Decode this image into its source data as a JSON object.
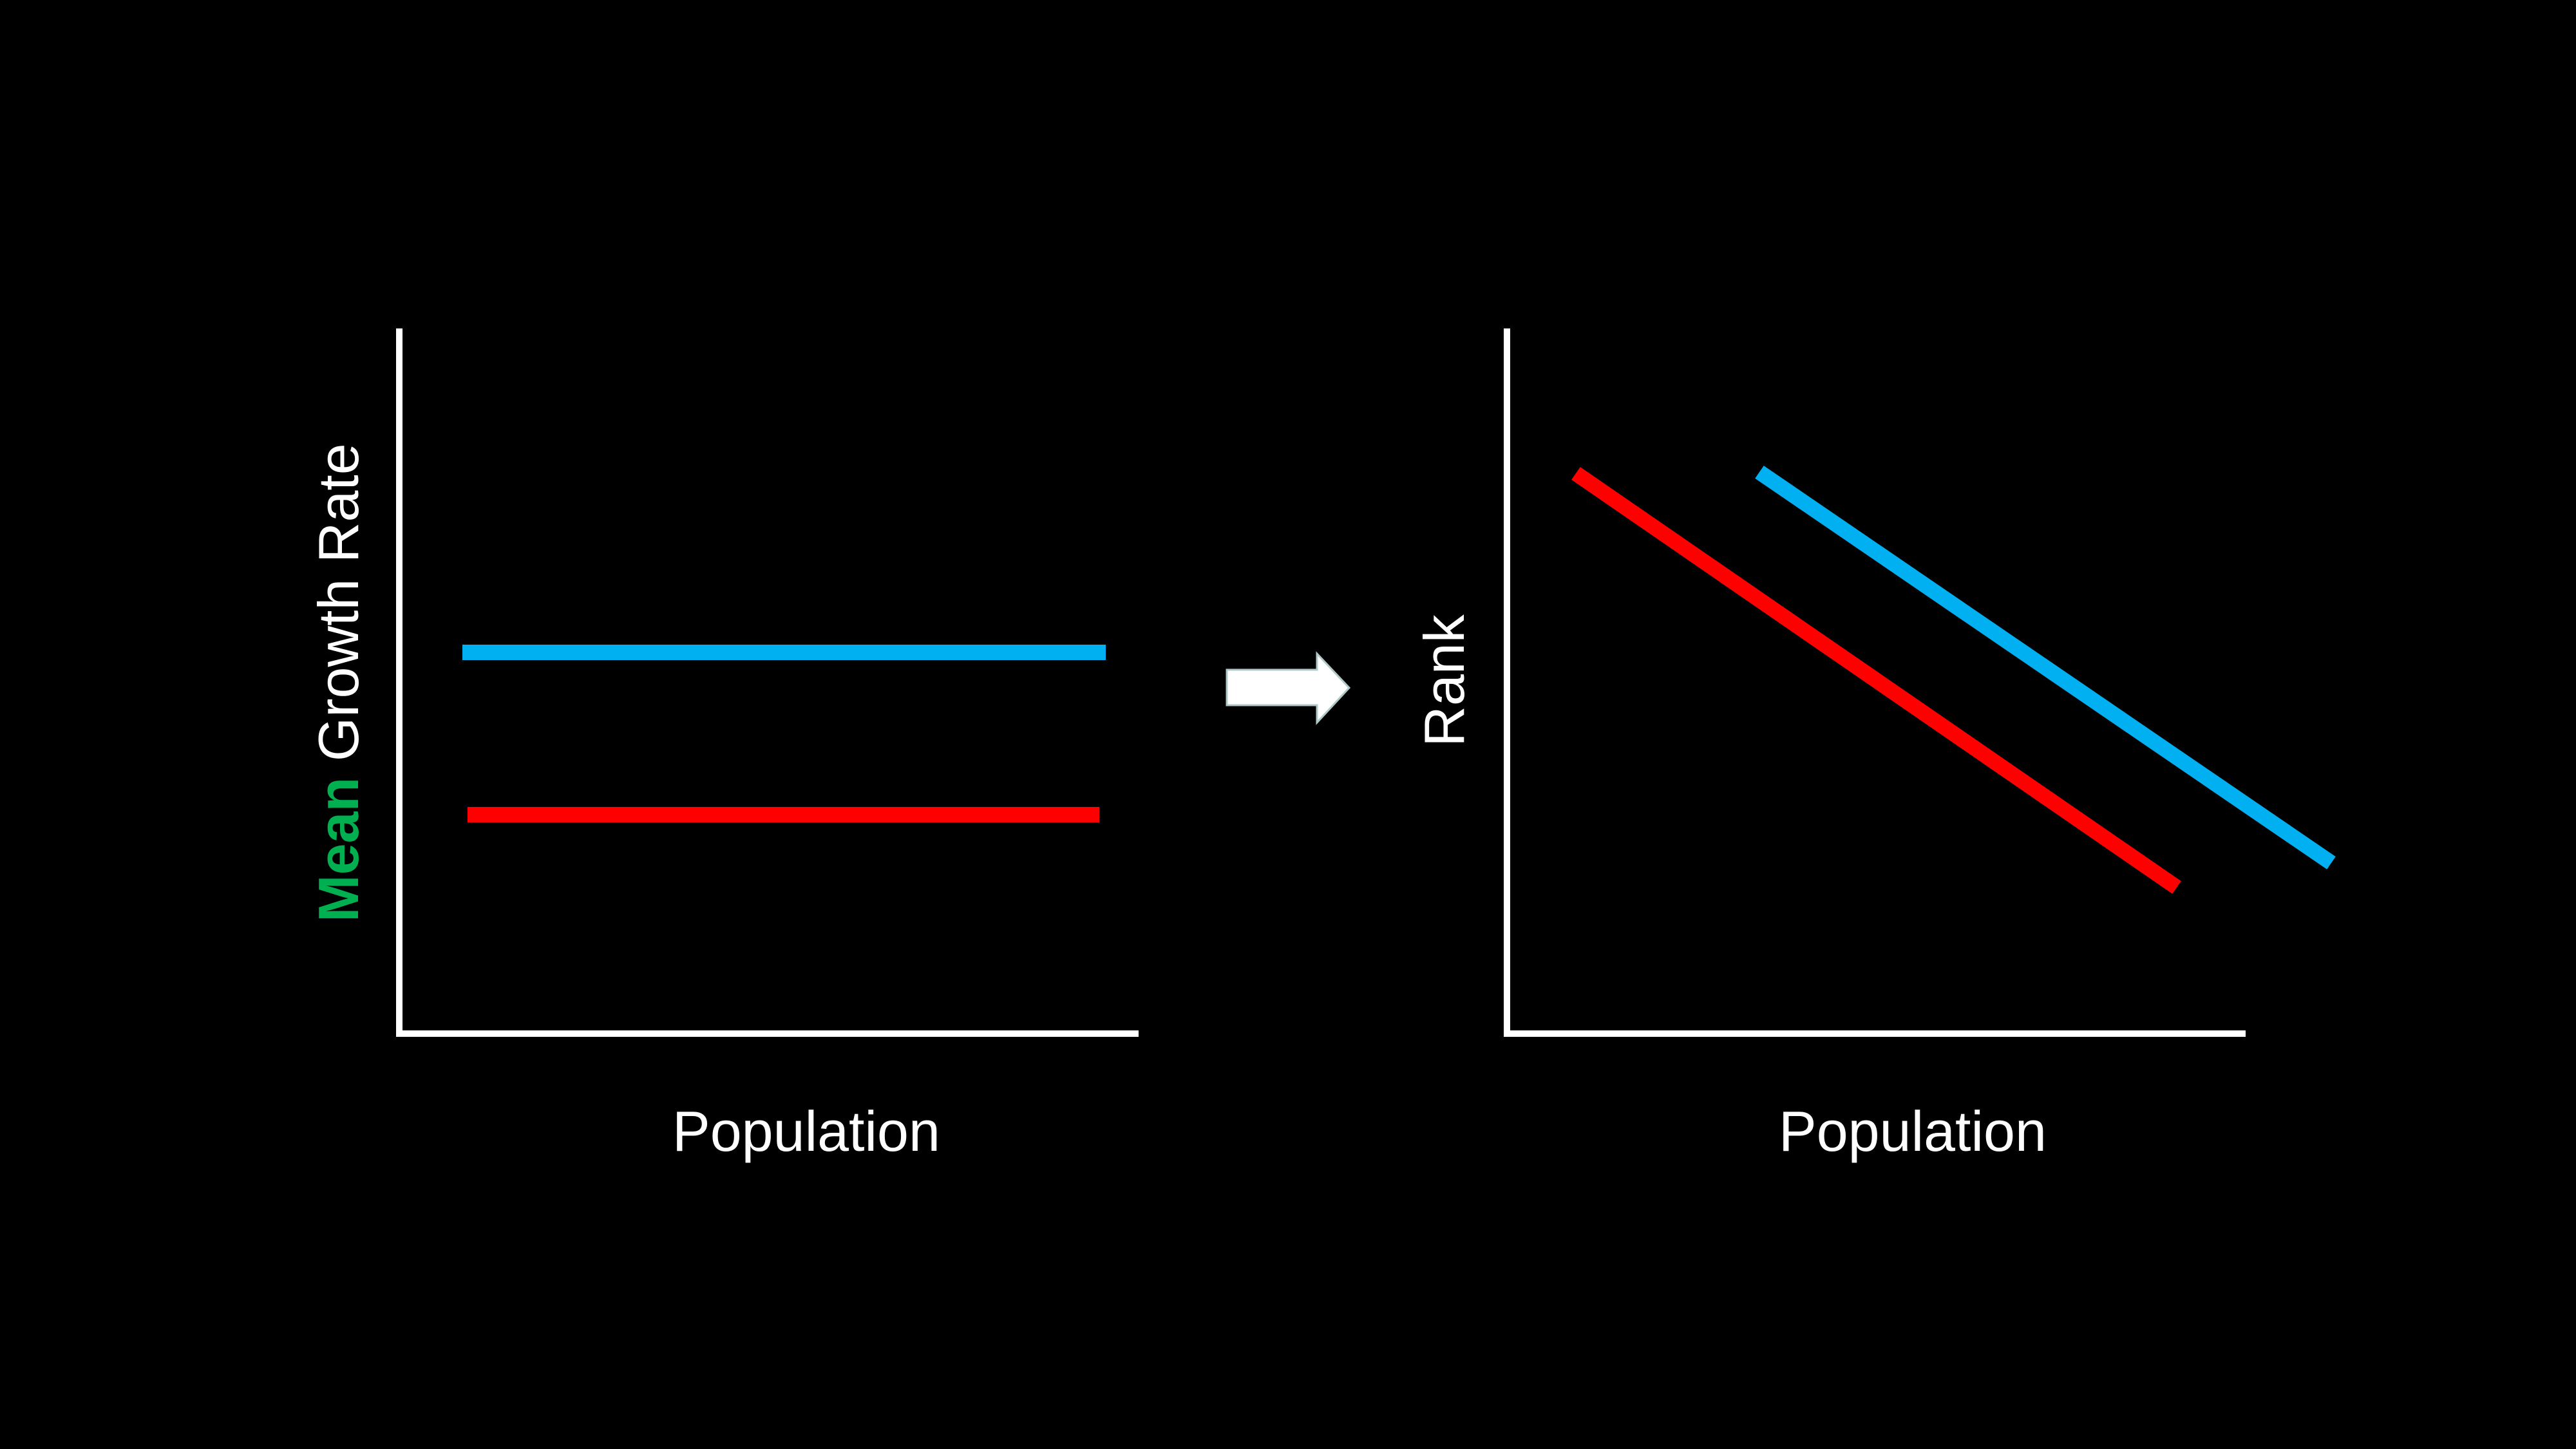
{
  "left_panel": {
    "ylabel_highlight": "Mean",
    "ylabel_rest": " Growth Rate",
    "xlabel": "Population",
    "series": [
      {
        "color": "#00b0f0",
        "shape": "horizontal-line",
        "level": "higher"
      },
      {
        "color": "#ff0000",
        "shape": "horizontal-line",
        "level": "lower"
      }
    ]
  },
  "right_panel": {
    "ylabel": "Rank",
    "xlabel": "Population",
    "series": [
      {
        "color": "#ff0000",
        "shape": "descending-line",
        "position": "left"
      },
      {
        "color": "#00b0f0",
        "shape": "descending-line",
        "position": "right"
      }
    ]
  },
  "arrow": {
    "icon": "right-arrow-icon",
    "color": "#ffffff"
  },
  "colors": {
    "background": "#000000",
    "axis": "#ffffff",
    "highlight": "#00b050",
    "blue": "#00b0f0",
    "red": "#ff0000"
  }
}
